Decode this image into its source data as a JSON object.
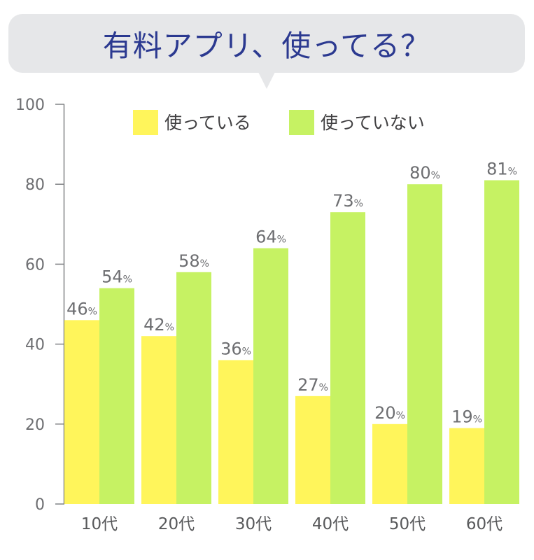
{
  "title": "有料アプリ、使ってる？",
  "colors": {
    "used": "#fff55b",
    "not_used": "#c6f263",
    "axis": "#808285",
    "title": "#2b3990"
  },
  "chart_data": {
    "type": "bar",
    "categories": [
      "10代",
      "20代",
      "30代",
      "40代",
      "50代",
      "60代"
    ],
    "series": [
      {
        "name": "使っている",
        "values": [
          46,
          42,
          36,
          27,
          20,
          19
        ]
      },
      {
        "name": "使っていない",
        "values": [
          54,
          58,
          64,
          73,
          80,
          81
        ]
      }
    ],
    "value_suffix": "%",
    "yticks": [
      0,
      20,
      40,
      60,
      80,
      100
    ],
    "ylim": [
      0,
      100
    ],
    "legend": "top-center",
    "grid": false
  }
}
